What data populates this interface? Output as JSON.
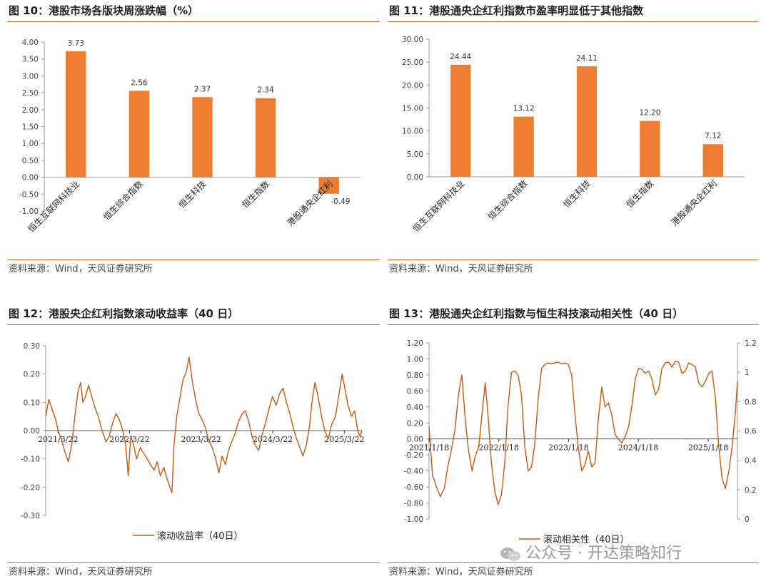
{
  "panels": [
    {
      "title": "图 10：港股市场各版块周涨跌幅（%）",
      "source": "资料来源：Wind，天风证券研究所"
    },
    {
      "title": "图 11：港股通央企红利指数市盈率明显低于其他指数",
      "source": "资料来源：Wind，天风证券研究所"
    },
    {
      "title": "图 12：港股央企红利指数滚动收益率（40 日）",
      "source": "资料来源：Wind，天风证券研究所"
    },
    {
      "title": "图 13：港股通央企红利指数与恒生科技滚动相关性（40 日）",
      "source": "资料来源：Wind，天风证券研究所"
    }
  ],
  "watermark": "公众号 · 开达策略知行",
  "colors": {
    "bar": "#ED7D31",
    "line": "#C55A11",
    "axis": "#999999",
    "rule": "#C96A2B"
  },
  "chart_data": [
    {
      "type": "bar",
      "categories": [
        "恒生互联网科技业",
        "恒生综合指数",
        "恒生科技",
        "恒生指数",
        "港股通央企红利"
      ],
      "values": [
        3.73,
        2.56,
        2.37,
        2.34,
        -0.49
      ],
      "data_labels": [
        "3.73",
        "2.56",
        "2.37",
        "2.34",
        "-0.49"
      ],
      "ylim": [
        -1.0,
        4.0
      ],
      "yticks": [
        "4.00",
        "3.50",
        "3.00",
        "2.50",
        "2.00",
        "1.50",
        "1.00",
        "0.50",
        "0.00",
        "-0.50",
        "-1.00"
      ],
      "xlabel": "",
      "ylabel": ""
    },
    {
      "type": "bar",
      "categories": [
        "恒生互联网科技业",
        "恒生综合指数",
        "恒生科技",
        "恒生指数",
        "港股通央企红利"
      ],
      "values": [
        24.44,
        13.12,
        24.11,
        12.2,
        7.12
      ],
      "data_labels": [
        "24.44",
        "13.12",
        "24.11",
        "12.20",
        "7.12"
      ],
      "ylim": [
        0,
        30
      ],
      "yticks": [
        "30.00",
        "25.00",
        "20.00",
        "15.00",
        "10.00",
        "5.00",
        "0.00"
      ],
      "xlabel": "",
      "ylabel": ""
    },
    {
      "type": "line",
      "series": [
        {
          "name": "滚动收益率（40日）",
          "x_start": "2021/1/18",
          "x_end": "2025/6/20",
          "points": [
            [
              "2021/1/18",
              0.05
            ],
            [
              "2021/2/3",
              0.11
            ],
            [
              "2021/2/22",
              0.07
            ],
            [
              "2021/3/10",
              0.04
            ],
            [
              "2021/3/22",
              0.0
            ],
            [
              "2021/4/8",
              -0.03
            ],
            [
              "2021/4/28",
              -0.08
            ],
            [
              "2021/5/14",
              -0.11
            ],
            [
              "2021/5/31",
              -0.05
            ],
            [
              "2021/6/16",
              0.05
            ],
            [
              "2021/7/2",
              0.14
            ],
            [
              "2021/7/16",
              0.17
            ],
            [
              "2021/7/26",
              0.1
            ],
            [
              "2021/8/9",
              0.12
            ],
            [
              "2021/8/25",
              0.16
            ],
            [
              "2021/9/10",
              0.12
            ],
            [
              "2021/9/27",
              0.08
            ],
            [
              "2021/10/14",
              0.05
            ],
            [
              "2021/11/2",
              0.0
            ],
            [
              "2021/11/22",
              -0.04
            ],
            [
              "2021/12/8",
              -0.02
            ],
            [
              "2021/12/27",
              0.03
            ],
            [
              "2022/1/12",
              0.06
            ],
            [
              "2022/1/28",
              0.04
            ],
            [
              "2022/2/16",
              0.0
            ],
            [
              "2022/3/2",
              -0.05
            ],
            [
              "2022/3/15",
              -0.16
            ],
            [
              "2022/3/28",
              -0.02
            ],
            [
              "2022/4/11",
              -0.05
            ],
            [
              "2022/4/27",
              -0.1
            ],
            [
              "2022/5/16",
              -0.06
            ],
            [
              "2022/6/2",
              -0.08
            ],
            [
              "2022/6/20",
              -0.1
            ],
            [
              "2022/7/6",
              -0.12
            ],
            [
              "2022/7/25",
              -0.14
            ],
            [
              "2022/8/10",
              -0.11
            ],
            [
              "2022/8/26",
              -0.16
            ],
            [
              "2022/9/13",
              -0.13
            ],
            [
              "2022/9/29",
              -0.17
            ],
            [
              "2022/10/24",
              -0.22
            ],
            [
              "2022/11/4",
              -0.05
            ],
            [
              "2022/11/18",
              0.05
            ],
            [
              "2022/12/5",
              0.12
            ],
            [
              "2022/12/20",
              0.18
            ],
            [
              "2023/1/6",
              0.21
            ],
            [
              "2023/1/20",
              0.26
            ],
            [
              "2023/2/6",
              0.17
            ],
            [
              "2023/2/22",
              0.11
            ],
            [
              "2023/3/10",
              0.06
            ],
            [
              "2023/3/27",
              0.04
            ],
            [
              "2023/4/13",
              0.01
            ],
            [
              "2023/4/28",
              -0.03
            ],
            [
              "2023/5/18",
              -0.06
            ],
            [
              "2023/6/5",
              -0.1
            ],
            [
              "2023/6/21",
              -0.15
            ],
            [
              "2023/7/7",
              -0.09
            ],
            [
              "2023/7/24",
              -0.12
            ],
            [
              "2023/8/9",
              -0.07
            ],
            [
              "2023/8/25",
              -0.04
            ],
            [
              "2023/9/12",
              -0.01
            ],
            [
              "2023/9/28",
              0.03
            ],
            [
              "2023/10/18",
              0.06
            ],
            [
              "2023/11/3",
              0.07
            ],
            [
              "2023/11/21",
              0.03
            ],
            [
              "2023/12/7",
              -0.02
            ],
            [
              "2023/12/22",
              -0.05
            ],
            [
              "2024/1/10",
              -0.07
            ],
            [
              "2024/1/26",
              -0.02
            ],
            [
              "2024/2/15",
              0.03
            ],
            [
              "2024/3/4",
              0.08
            ],
            [
              "2024/3/20",
              0.12
            ],
            [
              "2024/4/9",
              0.09
            ],
            [
              "2024/4/25",
              0.13
            ],
            [
              "2024/5/14",
              0.15
            ],
            [
              "2024/5/30",
              0.1
            ],
            [
              "2024/6/17",
              0.06
            ],
            [
              "2024/7/4",
              0.01
            ],
            [
              "2024/7/22",
              -0.03
            ],
            [
              "2024/8/7",
              -0.06
            ],
            [
              "2024/8/23",
              -0.09
            ],
            [
              "2024/9/10",
              -0.05
            ],
            [
              "2024/9/26",
              0.02
            ],
            [
              "2024/10/8",
              0.1
            ],
            [
              "2024/10/23",
              0.17
            ],
            [
              "2024/11/8",
              0.12
            ],
            [
              "2024/11/26",
              0.05
            ],
            [
              "2024/12/12",
              0.0
            ],
            [
              "2024/12/30",
              -0.03
            ],
            [
              "2025/1/16",
              0.02
            ],
            [
              "2025/2/5",
              0.05
            ],
            [
              "2025/2/21",
              0.12
            ],
            [
              "2025/3/11",
              0.2
            ],
            [
              "2025/3/27",
              0.14
            ],
            [
              "2025/4/10",
              0.09
            ],
            [
              "2025/4/28",
              0.05
            ],
            [
              "2025/5/14",
              0.07
            ],
            [
              "2025/5/29",
              0.0
            ],
            [
              "2025/6/10",
              -0.02
            ],
            [
              "2025/6/20",
              0.0
            ]
          ]
        }
      ],
      "x_ticks": [
        "2021/3/22",
        "2022/3/22",
        "2023/3/22",
        "2024/3/22",
        "2025/3/22"
      ],
      "ylim": [
        -0.3,
        0.3
      ],
      "yticks": [
        "0.30",
        "0.20",
        "0.10",
        "0.00",
        "-0.10",
        "-0.20",
        "-0.30"
      ],
      "legend": "top-bottom-center"
    },
    {
      "type": "line",
      "series": [
        {
          "name": "滚动相关性（40日）",
          "x_start": "2021/1/18",
          "x_end": "2025/6/20",
          "points": [
            [
              "2021/1/18",
              0.15
            ],
            [
              "2021/2/5",
              -0.45
            ],
            [
              "2021/2/26",
              -0.6
            ],
            [
              "2021/3/18",
              -0.72
            ],
            [
              "2021/4/8",
              -0.62
            ],
            [
              "2021/4/26",
              -0.35
            ],
            [
              "2021/5/14",
              -0.15
            ],
            [
              "2021/6/2",
              0.1
            ],
            [
              "2021/6/21",
              0.55
            ],
            [
              "2021/7/9",
              0.8
            ],
            [
              "2021/7/28",
              0.2
            ],
            [
              "2021/8/13",
              -0.15
            ],
            [
              "2021/8/31",
              -0.4
            ],
            [
              "2021/9/16",
              -0.22
            ],
            [
              "2021/10/5",
              -0.1
            ],
            [
              "2021/10/22",
              0.3
            ],
            [
              "2021/11/8",
              0.7
            ],
            [
              "2021/11/24",
              0.25
            ],
            [
              "2021/12/10",
              -0.3
            ],
            [
              "2021/12/28",
              -0.65
            ],
            [
              "2022/1/14",
              -0.82
            ],
            [
              "2022/2/1",
              -0.7
            ],
            [
              "2022/2/18",
              -0.3
            ],
            [
              "2022/3/7",
              0.4
            ],
            [
              "2022/3/25",
              0.83
            ],
            [
              "2022/4/12",
              0.85
            ],
            [
              "2022/4/29",
              0.8
            ],
            [
              "2022/5/17",
              0.55
            ],
            [
              "2022/6/3",
              -0.1
            ],
            [
              "2022/6/21",
              -0.4
            ],
            [
              "2022/7/8",
              -0.35
            ],
            [
              "2022/7/26",
              -0.05
            ],
            [
              "2022/8/12",
              0.5
            ],
            [
              "2022/8/30",
              0.88
            ],
            [
              "2022/9/16",
              0.93
            ],
            [
              "2022/10/4",
              0.95
            ],
            [
              "2022/10/21",
              0.94
            ],
            [
              "2022/11/8",
              0.95
            ],
            [
              "2022/11/25",
              0.96
            ],
            [
              "2022/12/13",
              0.94
            ],
            [
              "2022/12/30",
              0.95
            ],
            [
              "2023/1/17",
              0.93
            ],
            [
              "2023/2/3",
              0.8
            ],
            [
              "2023/2/21",
              0.3
            ],
            [
              "2023/3/10",
              -0.1
            ],
            [
              "2023/3/28",
              -0.4
            ],
            [
              "2023/4/14",
              -0.32
            ],
            [
              "2023/5/2",
              -0.15
            ],
            [
              "2023/5/19",
              -0.35
            ],
            [
              "2023/6/6",
              -0.3
            ],
            [
              "2023/6/23",
              0.25
            ],
            [
              "2023/7/11",
              0.65
            ],
            [
              "2023/7/28",
              0.4
            ],
            [
              "2023/8/15",
              0.45
            ],
            [
              "2023/9/1",
              0.3
            ],
            [
              "2023/9/19",
              0.05
            ],
            [
              "2023/10/6",
              0.0
            ],
            [
              "2023/10/24",
              -0.05
            ],
            [
              "2023/11/10",
              0.03
            ],
            [
              "2023/11/28",
              0.15
            ],
            [
              "2023/12/15",
              0.4
            ],
            [
              "2024/1/2",
              0.75
            ],
            [
              "2024/1/19",
              0.88
            ],
            [
              "2024/2/6",
              0.87
            ],
            [
              "2024/2/23",
              0.82
            ],
            [
              "2024/3/12",
              0.85
            ],
            [
              "2024/3/29",
              0.75
            ],
            [
              "2024/4/16",
              0.55
            ],
            [
              "2024/5/3",
              0.62
            ],
            [
              "2024/5/21",
              0.88
            ],
            [
              "2024/6/7",
              0.95
            ],
            [
              "2024/6/25",
              0.96
            ],
            [
              "2024/7/12",
              0.9
            ],
            [
              "2024/7/30",
              0.97
            ],
            [
              "2024/8/16",
              0.96
            ],
            [
              "2024/9/3",
              0.82
            ],
            [
              "2024/9/20",
              0.85
            ],
            [
              "2024/10/8",
              0.95
            ],
            [
              "2024/10/25",
              0.93
            ],
            [
              "2024/11/12",
              0.9
            ],
            [
              "2024/11/29",
              0.7
            ],
            [
              "2024/12/17",
              0.65
            ],
            [
              "2025/1/3",
              0.72
            ],
            [
              "2025/1/21",
              0.82
            ],
            [
              "2025/2/7",
              0.85
            ],
            [
              "2025/2/25",
              0.5
            ],
            [
              "2025/3/14",
              -0.1
            ],
            [
              "2025/4/1",
              -0.5
            ],
            [
              "2025/4/18",
              -0.62
            ],
            [
              "2025/5/6",
              -0.4
            ],
            [
              "2025/5/23",
              -0.1
            ],
            [
              "2025/6/10",
              0.35
            ],
            [
              "2025/6/20",
              0.72
            ]
          ]
        }
      ],
      "x_ticks": [
        "2021/1/18",
        "2022/1/18",
        "2023/1/18",
        "2024/1/18",
        "2025/1/18"
      ],
      "ylim": [
        -1.0,
        1.2
      ],
      "yticks": [
        "1.20",
        "1.00",
        "0.80",
        "0.60",
        "0.40",
        "0.20",
        "0.00",
        "-0.20",
        "-0.40",
        "-0.60",
        "-0.80",
        "-1.00"
      ],
      "y2lim": [
        0,
        1.2
      ],
      "y2ticks": [
        "1.2",
        "1",
        "0.8",
        "0.6",
        "0.4",
        "0.2",
        "0"
      ],
      "legend": "bottom-center"
    }
  ]
}
